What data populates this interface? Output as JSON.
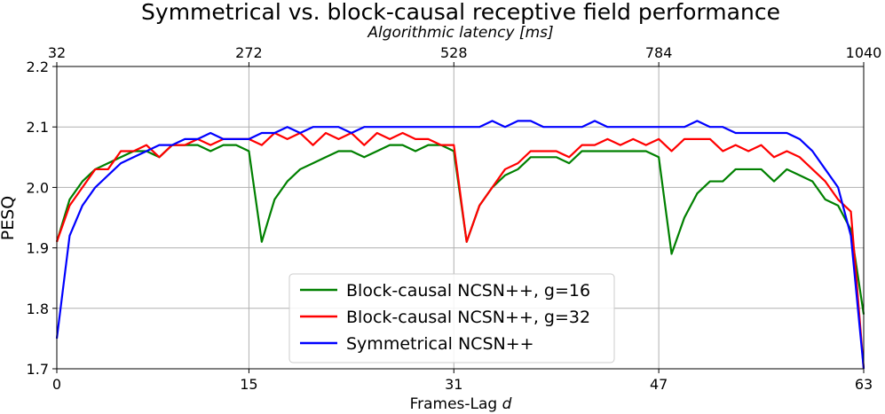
{
  "chart_data": {
    "type": "line",
    "title": "Symmetrical vs. block-causal receptive field performance",
    "xlabel_top": "Algorithmic latency [ms]",
    "xlabel_prefix": "Frames-Lag",
    "xlabel_var": "d",
    "ylabel": "PESQ",
    "xlim": [
      0,
      63
    ],
    "ylim": [
      1.7,
      2.2
    ],
    "x_ticks": [
      0,
      15,
      31,
      47,
      63
    ],
    "x_tick_labels": [
      "0",
      "15",
      "31",
      "47",
      "63"
    ],
    "top_ticks": [
      0,
      15,
      31,
      47,
      63
    ],
    "top_tick_labels": [
      "32",
      "272",
      "528",
      "784",
      "1040"
    ],
    "y_ticks": [
      1.7,
      1.8,
      1.9,
      2.0,
      2.1,
      2.2
    ],
    "y_tick_labels": [
      "1.7",
      "1.8",
      "1.9",
      "2.0",
      "2.1",
      "2.2"
    ],
    "grid": true,
    "legend_position": "lower center",
    "series": [
      {
        "name": "Block-causal NCSN++, g=16",
        "color": "#008000",
        "values": [
          1.91,
          1.98,
          2.01,
          2.03,
          2.04,
          2.05,
          2.06,
          2.06,
          2.05,
          2.07,
          2.07,
          2.07,
          2.06,
          2.07,
          2.07,
          2.06,
          1.91,
          1.98,
          2.01,
          2.03,
          2.04,
          2.05,
          2.06,
          2.06,
          2.05,
          2.06,
          2.07,
          2.07,
          2.06,
          2.07,
          2.07,
          2.06,
          1.91,
          1.97,
          2.0,
          2.02,
          2.03,
          2.05,
          2.05,
          2.05,
          2.04,
          2.06,
          2.06,
          2.06,
          2.06,
          2.06,
          2.06,
          2.05,
          1.89,
          1.95,
          1.99,
          2.01,
          2.01,
          2.03,
          2.03,
          2.03,
          2.01,
          2.03,
          2.02,
          2.01,
          1.98,
          1.97,
          1.93,
          1.79
        ]
      },
      {
        "name": "Block-causal NCSN++, g=32",
        "color": "#ff0000",
        "values": [
          1.91,
          1.97,
          2.0,
          2.03,
          2.03,
          2.06,
          2.06,
          2.07,
          2.05,
          2.07,
          2.07,
          2.08,
          2.07,
          2.08,
          2.08,
          2.08,
          2.07,
          2.09,
          2.08,
          2.09,
          2.07,
          2.09,
          2.08,
          2.09,
          2.07,
          2.09,
          2.08,
          2.09,
          2.08,
          2.08,
          2.07,
          2.07,
          1.91,
          1.97,
          2.0,
          2.03,
          2.04,
          2.06,
          2.06,
          2.06,
          2.05,
          2.07,
          2.07,
          2.08,
          2.07,
          2.08,
          2.07,
          2.08,
          2.06,
          2.08,
          2.08,
          2.08,
          2.06,
          2.07,
          2.06,
          2.07,
          2.05,
          2.06,
          2.05,
          2.03,
          2.01,
          1.98,
          1.96,
          1.7
        ]
      },
      {
        "name": "Symmetrical NCSN++",
        "color": "#0000ff",
        "values": [
          1.75,
          1.92,
          1.97,
          2.0,
          2.02,
          2.04,
          2.05,
          2.06,
          2.07,
          2.07,
          2.08,
          2.08,
          2.09,
          2.08,
          2.08,
          2.08,
          2.09,
          2.09,
          2.1,
          2.09,
          2.1,
          2.1,
          2.1,
          2.09,
          2.1,
          2.1,
          2.1,
          2.1,
          2.1,
          2.1,
          2.1,
          2.1,
          2.1,
          2.1,
          2.11,
          2.1,
          2.11,
          2.11,
          2.1,
          2.1,
          2.1,
          2.1,
          2.11,
          2.1,
          2.1,
          2.1,
          2.1,
          2.1,
          2.1,
          2.1,
          2.11,
          2.1,
          2.1,
          2.09,
          2.09,
          2.09,
          2.09,
          2.09,
          2.08,
          2.06,
          2.03,
          2.0,
          1.92,
          1.7
        ]
      }
    ]
  }
}
